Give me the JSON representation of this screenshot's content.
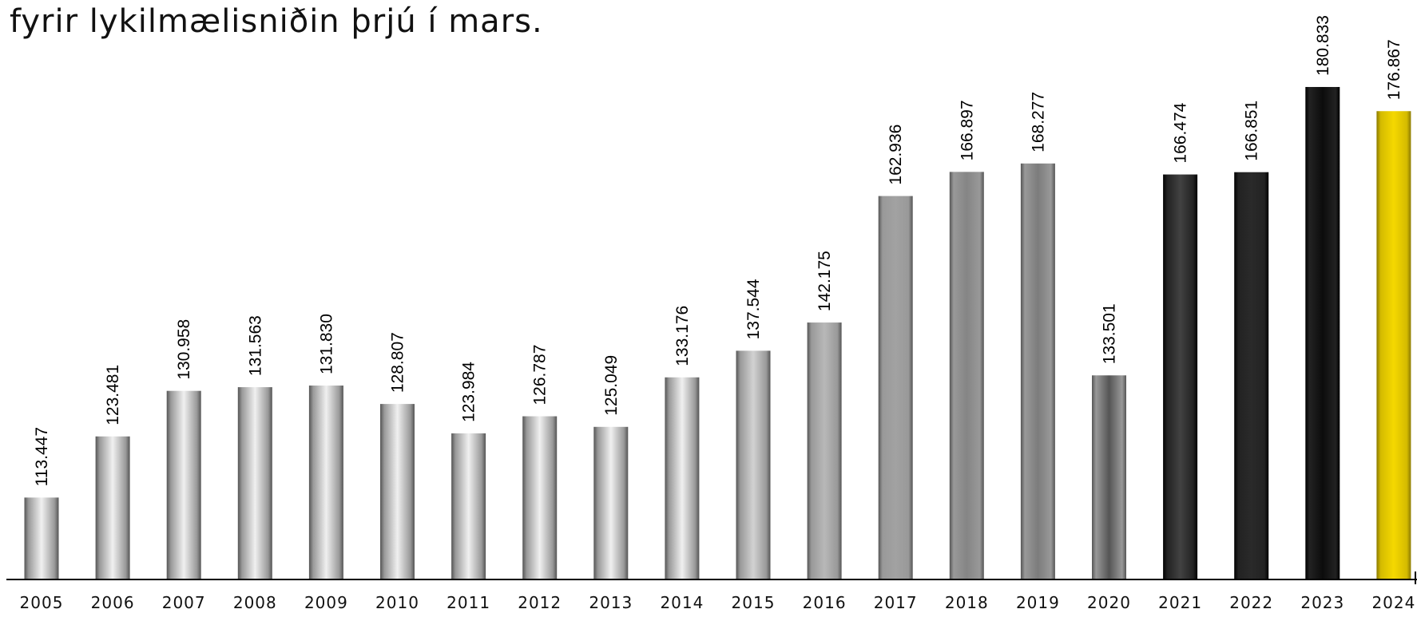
{
  "chart_data": {
    "type": "bar",
    "title": "fyrir lykilmælisniðin þrjú í mars.",
    "categories": [
      "2005",
      "2006",
      "2007",
      "2008",
      "2009",
      "2010",
      "2011",
      "2012",
      "2013",
      "2014",
      "2015",
      "2016",
      "2017",
      "2018",
      "2019",
      "2020",
      "2021",
      "2022",
      "2023",
      "2024"
    ],
    "values": [
      113447,
      123481,
      130958,
      131563,
      131830,
      128807,
      123984,
      126787,
      125049,
      133176,
      137544,
      142175,
      162936,
      166897,
      168277,
      133501,
      166474,
      166851,
      180833,
      176867
    ],
    "value_labels": [
      "113.447",
      "123.481",
      "130.958",
      "131.563",
      "131.830",
      "128.807",
      "123.984",
      "126.787",
      "125.049",
      "133.176",
      "137.544",
      "142.175",
      "162.936",
      "166.897",
      "168.277",
      "133.501",
      "166.474",
      "166.851",
      "180.833",
      "176.867"
    ],
    "colors": [
      "#f0f0f0",
      "#f0f0f0",
      "#f0f0f0",
      "#f0f0f0",
      "#f0f0f0",
      "#f0f0f0",
      "#f0f0f0",
      "#f0f0f0",
      "#f0f0f0",
      "#f0f0f0",
      "#d2d2d2",
      "#b8b8b8",
      "#a2a2a2",
      "#858585",
      "#7c7c7c",
      "#555555",
      "#424242",
      "#2a2a2a",
      "#0c0c0c",
      "#f5d800"
    ],
    "ylim": [
      100000,
      190000
    ]
  }
}
